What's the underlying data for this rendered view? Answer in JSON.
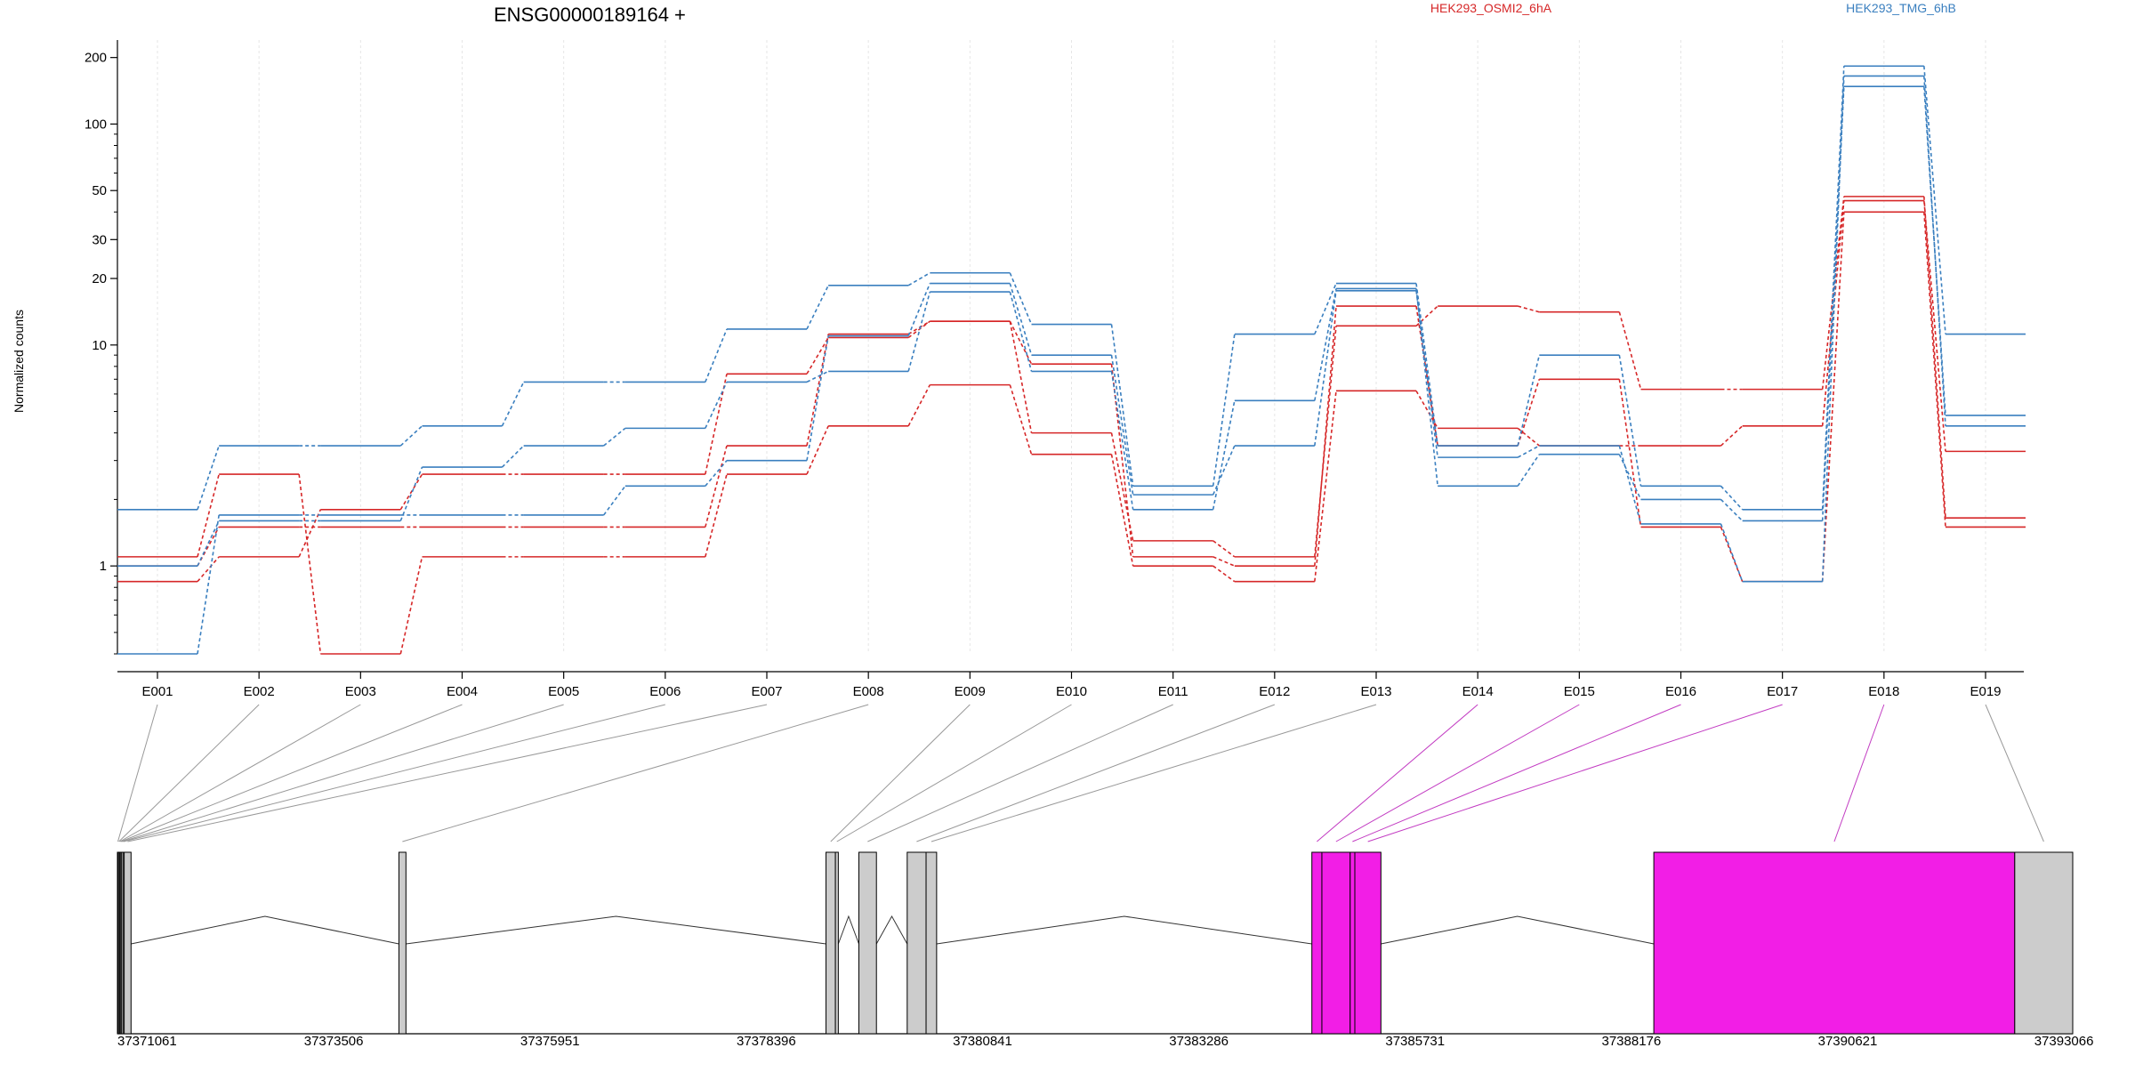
{
  "chart_data": {
    "type": "line",
    "title": "ENSG00000189164 +",
    "ylabel": "Normalized counts",
    "yscale": "log",
    "ylim": [
      0.4,
      240
    ],
    "yticks": [
      1,
      10,
      20,
      30,
      50,
      100,
      200
    ],
    "categories": [
      "E001",
      "E002",
      "E003",
      "E004",
      "E005",
      "E006",
      "E007",
      "E008",
      "E009",
      "E010",
      "E011",
      "E012",
      "E013",
      "E014",
      "E015",
      "E016",
      "E017",
      "E018",
      "E019"
    ],
    "colors": {
      "HEK293_OSMI2_6hA": "#d62728",
      "HEK293_TMG_6hB": "#3a7fbf"
    },
    "legend": [
      {
        "label": "HEK293_OSMI2_6hA",
        "color": "#d62728"
      },
      {
        "label": "HEK293_TMG_6hB",
        "color": "#3a7fbf"
      }
    ],
    "series": [
      {
        "group": "HEK293_OSMI2_6hA",
        "values": [
          1.1,
          2.6,
          0.4,
          1.1,
          1.1,
          1.1,
          2.6,
          4.3,
          6.6,
          3.2,
          1.0,
          0.85,
          6.2,
          4.2,
          3.5,
          3.5,
          4.3,
          45,
          3.3
        ]
      },
      {
        "group": "HEK293_OSMI2_6hA",
        "values": [
          0.85,
          1.1,
          1.8,
          2.6,
          2.6,
          2.6,
          7.4,
          10.8,
          12.8,
          4.0,
          1.3,
          1.1,
          12.2,
          15.0,
          14.1,
          6.3,
          6.3,
          47,
          1.65
        ]
      },
      {
        "group": "HEK293_OSMI2_6hA",
        "values": [
          1.0,
          1.5,
          1.5,
          1.5,
          1.5,
          1.5,
          3.5,
          11.2,
          12.8,
          8.2,
          1.1,
          1.0,
          15.0,
          3.5,
          7.0,
          1.5,
          0.85,
          40,
          1.5
        ]
      },
      {
        "group": "HEK293_TMG_6hB",
        "values": [
          1.8,
          3.5,
          3.5,
          4.3,
          6.8,
          6.8,
          11.8,
          18.6,
          21.2,
          12.4,
          2.3,
          11.2,
          19.0,
          3.5,
          9.0,
          2.3,
          1.8,
          183,
          11.2
        ]
      },
      {
        "group": "HEK293_TMG_6hB",
        "values": [
          0.4,
          1.7,
          1.7,
          1.7,
          1.7,
          2.3,
          3.0,
          11.0,
          19.0,
          9.0,
          2.1,
          3.5,
          17.6,
          3.1,
          3.5,
          1.55,
          0.85,
          165,
          4.3
        ]
      },
      {
        "group": "HEK293_TMG_6hB",
        "values": [
          1.0,
          1.6,
          1.6,
          2.8,
          3.5,
          4.2,
          6.8,
          7.6,
          17.4,
          7.6,
          1.8,
          5.6,
          18.0,
          2.3,
          3.2,
          2.0,
          1.6,
          148,
          4.8
        ]
      }
    ],
    "gene_model": {
      "genomic_ticks": [
        "37371061",
        "37373506",
        "37375951",
        "37378396",
        "37380841",
        "37383286",
        "37385731",
        "37388176",
        "37390621",
        "37393066"
      ],
      "exons": [
        {
          "id": "E001",
          "start": 37371061,
          "end": 37371071,
          "highlight": false
        },
        {
          "id": "E002",
          "start": 37371071,
          "end": 37371084,
          "highlight": false
        },
        {
          "id": "E003",
          "start": 37371084,
          "end": 37371093,
          "highlight": false
        },
        {
          "id": "E004",
          "start": 37371093,
          "end": 37371105,
          "highlight": false
        },
        {
          "id": "E005",
          "start": 37371105,
          "end": 37371124,
          "highlight": false
        },
        {
          "id": "E006",
          "start": 37371124,
          "end": 37371138,
          "highlight": false
        },
        {
          "id": "E007",
          "start": 37371138,
          "end": 37371216,
          "highlight": false
        },
        {
          "id": "E008",
          "start": 37374265,
          "end": 37374345,
          "highlight": false
        },
        {
          "id": "E009",
          "start": 37379126,
          "end": 37379233,
          "highlight": false
        },
        {
          "id": "E010",
          "start": 37379233,
          "end": 37379266,
          "highlight": false
        },
        {
          "id": "E011",
          "start": 37379500,
          "end": 37379700,
          "highlight": false
        },
        {
          "id": "E012",
          "start": 37380050,
          "end": 37380265,
          "highlight": false
        },
        {
          "id": "E013",
          "start": 37380265,
          "end": 37380385,
          "highlight": false
        },
        {
          "id": "E014",
          "start": 37384656,
          "end": 37384770,
          "highlight": true
        },
        {
          "id": "E015",
          "start": 37384770,
          "end": 37385092,
          "highlight": true
        },
        {
          "id": "E016",
          "start": 37385092,
          "end": 37385145,
          "highlight": true
        },
        {
          "id": "E017",
          "start": 37385145,
          "end": 37385442,
          "highlight": true
        },
        {
          "id": "E018",
          "start": 37388548,
          "end": 37392656,
          "highlight": true
        },
        {
          "id": "E019",
          "start": 37392656,
          "end": 37393316,
          "highlight": false
        }
      ],
      "introns": [
        [
          37371216,
          37374265
        ],
        [
          37374345,
          37379126
        ],
        [
          37379266,
          37379500
        ],
        [
          37379700,
          37380050
        ],
        [
          37380385,
          37384656
        ],
        [
          37385442,
          37388548
        ]
      ],
      "range": [
        37371061,
        37393316
      ],
      "highlight_color": "#f21ee6",
      "exon_color": "#cccccc"
    }
  }
}
